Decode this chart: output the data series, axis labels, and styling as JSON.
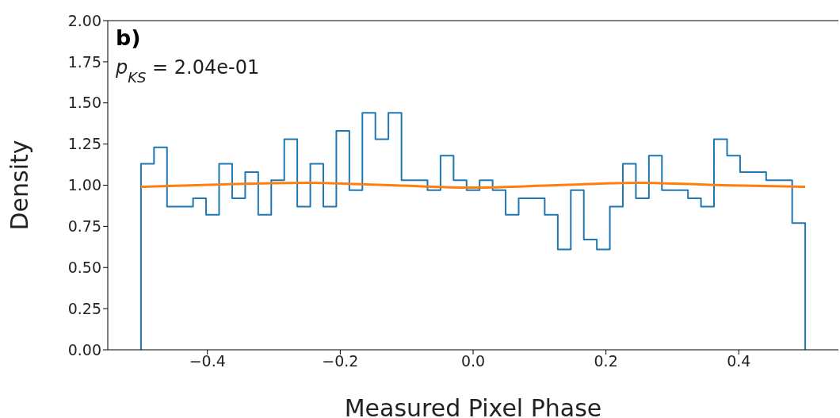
{
  "chart_data": {
    "type": "histogram",
    "xlabel": "Measured Pixel Phase",
    "ylabel": "Density",
    "annotations": [
      "b)",
      "p$_{KS}$ = 2.04e-01"
    ],
    "series": [
      {
        "type": "histogram",
        "color": "#1f77b4",
        "bins": [
          -0.5,
          -0.4804,
          -0.4608,
          -0.4412,
          -0.4216,
          -0.402,
          -0.3824,
          -0.3627,
          -0.3431,
          -0.3235,
          -0.3039,
          -0.2843,
          -0.2647,
          -0.2451,
          -0.2255,
          -0.2059,
          -0.1863,
          -0.1667,
          -0.1471,
          -0.1275,
          -0.1078,
          -0.0882,
          -0.0686,
          -0.049,
          -0.0294,
          -0.0098,
          0.0098,
          0.0294,
          0.049,
          0.0686,
          0.0882,
          0.1078,
          0.1275,
          0.1471,
          0.1667,
          0.1863,
          0.2059,
          0.2255,
          0.2451,
          0.2647,
          0.2843,
          0.3039,
          0.3235,
          0.3431,
          0.3627,
          0.3824,
          0.402,
          0.4216,
          0.4412,
          0.4608,
          0.4804,
          0.5
        ],
        "values": [
          1.13,
          1.23,
          0.87,
          0.87,
          0.92,
          0.82,
          1.13,
          0.92,
          1.08,
          0.82,
          1.03,
          1.28,
          0.87,
          1.13,
          0.87,
          1.33,
          0.97,
          1.44,
          1.28,
          1.44,
          1.03,
          1.03,
          0.97,
          1.18,
          1.03,
          0.97,
          1.03,
          0.97,
          0.82,
          0.92,
          0.92,
          0.82,
          0.61,
          0.97,
          0.67,
          0.61,
          0.87,
          1.13,
          0.92,
          1.18,
          0.97,
          0.97,
          0.92,
          0.87,
          1.28,
          1.18,
          1.08,
          1.08,
          1.03,
          1.03,
          0.77
        ]
      },
      {
        "type": "line",
        "color": "#ff7f0e",
        "x": [
          -0.5,
          -0.375,
          -0.25,
          -0.125,
          0,
          0.125,
          0.25,
          0.375,
          0.5
        ],
        "values": [
          0.99,
          1.005,
          1.015,
          1.0,
          0.985,
          1.0,
          1.015,
          1.0,
          0.99
        ]
      }
    ],
    "xlim": [
      -0.55,
      0.55
    ],
    "ylim": [
      0,
      2
    ],
    "xticks": [
      {
        "value": -0.4,
        "label": "−0.4"
      },
      {
        "value": -0.2,
        "label": "−0.2"
      },
      {
        "value": 0,
        "label": "0.0"
      },
      {
        "value": 0.2,
        "label": "0.2"
      },
      {
        "value": 0.4,
        "label": "0.4"
      }
    ],
    "yticks": [
      {
        "value": 0,
        "label": "0.00"
      },
      {
        "value": 0.25,
        "label": "0.25"
      },
      {
        "value": 0.5,
        "label": "0.50"
      },
      {
        "value": 0.75,
        "label": "0.75"
      },
      {
        "value": 1,
        "label": "1.00"
      },
      {
        "value": 1.25,
        "label": "1.25"
      },
      {
        "value": 1.5,
        "label": "1.50"
      },
      {
        "value": 1.75,
        "label": "1.75"
      },
      {
        "value": 2,
        "label": "2.00"
      }
    ]
  }
}
